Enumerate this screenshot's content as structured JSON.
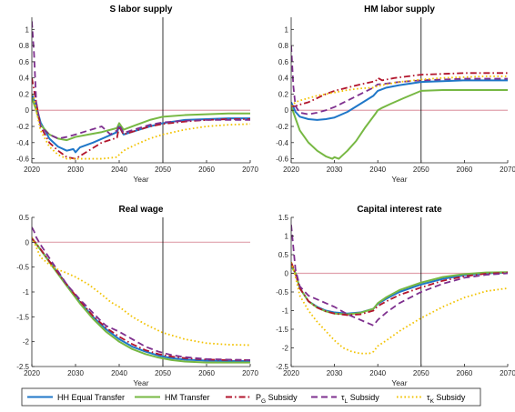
{
  "figure": {
    "legend": [
      {
        "label": "HH Equal Transfer",
        "color": "#1f77c8",
        "dash": "solid"
      },
      {
        "label": "HM Transfer",
        "color": "#77b843",
        "dash": "solid"
      },
      {
        "label_main": "P",
        "label_sub": "G",
        "label_rest": " Subsidy",
        "color": "#b2152c",
        "dash": "dashdot"
      },
      {
        "label_main": "τ",
        "label_sub": "L",
        "label_rest": " Subsidy",
        "color": "#7e2f8e",
        "dash": "dash"
      },
      {
        "label_main": "τ",
        "label_sub": "K",
        "label_rest": " Subsidy",
        "color": "#f2c200",
        "dash": "dot"
      }
    ],
    "colors": {
      "zero_line": "#e0a0ac",
      "vline": "#000000",
      "axis": "#262626"
    }
  },
  "chart_data": [
    {
      "type": "line",
      "title": "S labor supply",
      "xlabel": "Year",
      "ylabel": "",
      "xlim": [
        2020,
        2070
      ],
      "ylim": [
        -0.65,
        1.15
      ],
      "xticks": [
        2020,
        2030,
        2040,
        2050,
        2060,
        2070
      ],
      "yticks": [
        -0.6,
        -0.4,
        -0.2,
        0,
        0.2,
        0.4,
        0.6,
        0.8,
        1
      ],
      "ytick_labels": [
        "-0.6",
        "-0.4",
        "-0.2",
        "0",
        "0.2",
        "0.4",
        "0.6",
        "0.8",
        "1"
      ],
      "zero_line": 0,
      "vline": 2050,
      "series": [
        {
          "name": "HH Equal Transfer",
          "x": [
            2020,
            2021,
            2022,
            2024,
            2026,
            2028,
            2029.5,
            2030,
            2031,
            2034,
            2037,
            2039.5,
            2040,
            2041,
            2044,
            2047,
            2050,
            2055,
            2060,
            2065,
            2070
          ],
          "y": [
            0.2,
            0.05,
            -0.15,
            -0.35,
            -0.45,
            -0.5,
            -0.48,
            -0.52,
            -0.46,
            -0.4,
            -0.33,
            -0.27,
            -0.2,
            -0.3,
            -0.25,
            -0.2,
            -0.16,
            -0.12,
            -0.11,
            -0.1,
            -0.1
          ]
        },
        {
          "name": "HM Transfer",
          "x": [
            2020,
            2021,
            2022,
            2024,
            2026,
            2028,
            2030,
            2033,
            2036,
            2039.5,
            2040,
            2041,
            2044,
            2047,
            2050,
            2055,
            2060,
            2065,
            2070
          ],
          "y": [
            0.15,
            0.0,
            -0.18,
            -0.3,
            -0.35,
            -0.37,
            -0.33,
            -0.3,
            -0.27,
            -0.22,
            -0.16,
            -0.24,
            -0.18,
            -0.12,
            -0.08,
            -0.06,
            -0.05,
            -0.04,
            -0.04
          ]
        },
        {
          "name": "P_G Subsidy",
          "x": [
            2020,
            2021,
            2022,
            2024,
            2026,
            2028,
            2030,
            2033,
            2036,
            2039.5,
            2040,
            2041,
            2044,
            2047,
            2050,
            2055,
            2060,
            2065,
            2070
          ],
          "y": [
            0.4,
            0.1,
            -0.2,
            -0.4,
            -0.5,
            -0.58,
            -0.6,
            -0.5,
            -0.4,
            -0.34,
            -0.2,
            -0.3,
            -0.25,
            -0.2,
            -0.17,
            -0.14,
            -0.12,
            -0.11,
            -0.11
          ]
        },
        {
          "name": "τ_L Subsidy",
          "x": [
            2020,
            2020.5,
            2021,
            2022,
            2024,
            2026,
            2028,
            2030,
            2033,
            2036,
            2038,
            2039.5,
            2040,
            2041,
            2044,
            2047,
            2050,
            2055,
            2060,
            2065,
            2070
          ],
          "y": [
            1.1,
            0.7,
            0.1,
            -0.2,
            -0.3,
            -0.35,
            -0.33,
            -0.3,
            -0.25,
            -0.2,
            -0.3,
            -0.25,
            -0.18,
            -0.28,
            -0.23,
            -0.18,
            -0.15,
            -0.13,
            -0.12,
            -0.12,
            -0.12
          ]
        },
        {
          "name": "τ_K Subsidy",
          "x": [
            2020,
            2020.5,
            2021,
            2022,
            2024,
            2026,
            2028,
            2030,
            2033,
            2036,
            2039.5,
            2040,
            2041,
            2044,
            2047,
            2050,
            2055,
            2060,
            2065,
            2070
          ],
          "y": [
            0.2,
            0.15,
            0.0,
            -0.25,
            -0.45,
            -0.55,
            -0.6,
            -0.6,
            -0.6,
            -0.6,
            -0.58,
            -0.55,
            -0.5,
            -0.42,
            -0.35,
            -0.3,
            -0.24,
            -0.2,
            -0.18,
            -0.17
          ]
        }
      ]
    },
    {
      "type": "line",
      "title": "HM labor supply",
      "xlabel": "Year",
      "ylabel": "",
      "xlim": [
        2020,
        2070
      ],
      "ylim": [
        -0.65,
        1.15
      ],
      "xticks": [
        2020,
        2030,
        2040,
        2050,
        2060,
        2070
      ],
      "yticks": [
        -0.6,
        -0.4,
        -0.2,
        0,
        0.2,
        0.4,
        0.6,
        0.8,
        1
      ],
      "ytick_labels": [
        "-0.6",
        "-0.4",
        "-0.2",
        "0",
        "0.2",
        "0.4",
        "0.6",
        "0.8",
        "1"
      ],
      "zero_line": 0,
      "vline": 2050,
      "series": [
        {
          "name": "HH Equal Transfer",
          "x": [
            2020,
            2021,
            2022,
            2024,
            2026,
            2028,
            2030,
            2033,
            2036,
            2039,
            2040,
            2042,
            2045,
            2050,
            2055,
            2060,
            2065,
            2070
          ],
          "y": [
            0.1,
            -0.02,
            -0.08,
            -0.11,
            -0.12,
            -0.11,
            -0.09,
            -0.02,
            0.08,
            0.18,
            0.24,
            0.28,
            0.31,
            0.35,
            0.36,
            0.37,
            0.37,
            0.37
          ]
        },
        {
          "name": "HM Transfer",
          "x": [
            2020,
            2021,
            2022,
            2024,
            2026,
            2028,
            2029.5,
            2030,
            2031,
            2033,
            2035,
            2037,
            2039.5,
            2040,
            2041,
            2043,
            2046,
            2050,
            2055,
            2060,
            2065,
            2070
          ],
          "y": [
            0.05,
            -0.1,
            -0.25,
            -0.4,
            -0.5,
            -0.57,
            -0.6,
            -0.58,
            -0.6,
            -0.5,
            -0.38,
            -0.22,
            -0.04,
            0.0,
            0.03,
            0.08,
            0.15,
            0.24,
            0.25,
            0.25,
            0.25,
            0.25
          ]
        },
        {
          "name": "P_G Subsidy",
          "x": [
            2020,
            2021,
            2022,
            2024,
            2026,
            2028,
            2030,
            2033,
            2036,
            2039.5,
            2040,
            2041,
            2044,
            2047,
            2050,
            2055,
            2060,
            2065,
            2070
          ],
          "y": [
            0.05,
            0.05,
            0.07,
            0.1,
            0.15,
            0.2,
            0.24,
            0.28,
            0.32,
            0.36,
            0.4,
            0.37,
            0.4,
            0.42,
            0.44,
            0.45,
            0.46,
            0.46,
            0.46
          ]
        },
        {
          "name": "τ_L Subsidy",
          "x": [
            2020,
            2020.5,
            2021,
            2022,
            2024,
            2026,
            2028,
            2030,
            2033,
            2036,
            2039,
            2040,
            2042,
            2045,
            2050,
            2055,
            2060,
            2065,
            2070
          ],
          "y": [
            0.8,
            0.3,
            0.05,
            -0.03,
            -0.05,
            -0.03,
            0.0,
            0.04,
            0.12,
            0.2,
            0.28,
            0.32,
            0.33,
            0.35,
            0.37,
            0.38,
            0.39,
            0.39,
            0.39
          ]
        },
        {
          "name": "τ_K Subsidy",
          "x": [
            2020,
            2021,
            2022,
            2024,
            2026,
            2028,
            2030,
            2033,
            2036,
            2039,
            2040,
            2042,
            2045,
            2050,
            2055,
            2060,
            2065,
            2070
          ],
          "y": [
            0.05,
            0.1,
            0.12,
            0.15,
            0.18,
            0.2,
            0.22,
            0.25,
            0.27,
            0.28,
            0.3,
            0.32,
            0.35,
            0.38,
            0.4,
            0.41,
            0.42,
            0.42
          ]
        }
      ]
    },
    {
      "type": "line",
      "title": "Real wage",
      "xlabel": "Year",
      "ylabel": "",
      "xlim": [
        2020,
        2070
      ],
      "ylim": [
        -2.5,
        0.5
      ],
      "xticks": [
        2020,
        2030,
        2040,
        2050,
        2060,
        2070
      ],
      "yticks": [
        -2.5,
        -2,
        -1.5,
        -1,
        -0.5,
        0,
        0.5
      ],
      "ytick_labels": [
        "-2.5",
        "-2",
        "-1.5",
        "-1",
        "-0.5",
        "0",
        "0.5"
      ],
      "zero_line": 0,
      "vline": 2050,
      "series": [
        {
          "name": "HH Equal Transfer",
          "x": [
            2020,
            2022,
            2025,
            2028,
            2031,
            2034,
            2037,
            2040,
            2043,
            2046,
            2049,
            2052,
            2055,
            2060,
            2065,
            2070
          ],
          "y": [
            0.08,
            -0.15,
            -0.5,
            -0.85,
            -1.2,
            -1.5,
            -1.75,
            -1.95,
            -2.1,
            -2.2,
            -2.28,
            -2.33,
            -2.36,
            -2.38,
            -2.39,
            -2.39
          ]
        },
        {
          "name": "HM Transfer",
          "x": [
            2020,
            2022,
            2025,
            2028,
            2031,
            2034,
            2037,
            2040,
            2043,
            2046,
            2049,
            2052,
            2055,
            2060,
            2065,
            2070
          ],
          "y": [
            0.08,
            -0.15,
            -0.52,
            -0.88,
            -1.23,
            -1.54,
            -1.8,
            -2.0,
            -2.15,
            -2.25,
            -2.32,
            -2.37,
            -2.4,
            -2.42,
            -2.42,
            -2.42
          ]
        },
        {
          "name": "P_G Subsidy",
          "x": [
            2020,
            2022,
            2025,
            2028,
            2031,
            2034,
            2037,
            2040,
            2043,
            2046,
            2049,
            2052,
            2055,
            2060,
            2065,
            2070
          ],
          "y": [
            0.08,
            -0.14,
            -0.5,
            -0.85,
            -1.18,
            -1.48,
            -1.72,
            -1.9,
            -2.05,
            -2.17,
            -2.25,
            -2.3,
            -2.33,
            -2.36,
            -2.37,
            -2.37
          ]
        },
        {
          "name": "τ_L Subsidy",
          "x": [
            2020,
            2020.5,
            2021,
            2022,
            2025,
            2028,
            2031,
            2034,
            2036,
            2037,
            2040,
            2043,
            2046,
            2049,
            2052,
            2055,
            2060,
            2065,
            2070
          ],
          "y": [
            0.3,
            0.22,
            0.1,
            -0.05,
            -0.45,
            -0.85,
            -1.15,
            -1.42,
            -1.6,
            -1.68,
            -1.8,
            -1.95,
            -2.1,
            -2.2,
            -2.27,
            -2.31,
            -2.35,
            -2.36,
            -2.37
          ]
        },
        {
          "name": "τ_K Subsidy",
          "x": [
            2020,
            2021,
            2022,
            2024,
            2026,
            2028,
            2030,
            2033,
            2036,
            2038,
            2040,
            2043,
            2046,
            2050,
            2055,
            2060,
            2065,
            2070
          ],
          "y": [
            0.1,
            -0.1,
            -0.3,
            -0.45,
            -0.55,
            -0.62,
            -0.7,
            -0.85,
            -1.05,
            -1.2,
            -1.3,
            -1.5,
            -1.65,
            -1.82,
            -1.95,
            -2.03,
            -2.06,
            -2.07
          ]
        }
      ]
    },
    {
      "type": "line",
      "title": "Capital interest rate",
      "xlabel": "Year",
      "ylabel": "",
      "xlim": [
        2020,
        2070
      ],
      "ylim": [
        -2.5,
        1.5
      ],
      "xticks": [
        2020,
        2030,
        2040,
        2050,
        2060,
        2070
      ],
      "yticks": [
        -2.5,
        -2,
        -1.5,
        -1,
        -0.5,
        0,
        0.5,
        1,
        1.5
      ],
      "ytick_labels": [
        "-2.5",
        "-2",
        "-1.5",
        "-1",
        "-0.5",
        "0",
        "0.5",
        "1",
        "1.5"
      ],
      "zero_line": 0,
      "vline": 2050,
      "series": [
        {
          "name": "HH Equal Transfer",
          "x": [
            2020,
            2021,
            2022,
            2024,
            2026,
            2028,
            2030,
            2033,
            2036,
            2039,
            2040,
            2042,
            2045,
            2050,
            2055,
            2060,
            2065,
            2070
          ],
          "y": [
            0.2,
            0.0,
            -0.4,
            -0.75,
            -0.9,
            -1.0,
            -1.05,
            -1.08,
            -1.05,
            -0.95,
            -0.82,
            -0.68,
            -0.5,
            -0.3,
            -0.15,
            -0.05,
            0.0,
            0.02
          ]
        },
        {
          "name": "HM Transfer",
          "x": [
            2020,
            2021,
            2022,
            2024,
            2026,
            2028,
            2030,
            2033,
            2036,
            2039,
            2040,
            2042,
            2045,
            2050,
            2055,
            2060,
            2065,
            2070
          ],
          "y": [
            0.2,
            0.0,
            -0.4,
            -0.75,
            -0.92,
            -1.02,
            -1.08,
            -1.1,
            -1.06,
            -0.95,
            -0.8,
            -0.64,
            -0.45,
            -0.25,
            -0.1,
            -0.02,
            0.02,
            0.03
          ]
        },
        {
          "name": "P_G Subsidy",
          "x": [
            2020,
            2021,
            2022,
            2024,
            2026,
            2028,
            2030,
            2033,
            2036,
            2039,
            2040,
            2042,
            2045,
            2050,
            2055,
            2060,
            2065,
            2070
          ],
          "y": [
            0.3,
            0.0,
            -0.4,
            -0.75,
            -0.92,
            -1.02,
            -1.08,
            -1.12,
            -1.1,
            -1.0,
            -0.88,
            -0.75,
            -0.58,
            -0.38,
            -0.2,
            -0.08,
            -0.01,
            0.02
          ]
        },
        {
          "name": "τ_L Subsidy",
          "x": [
            2020,
            2020.5,
            2021,
            2022,
            2024,
            2026,
            2028,
            2030,
            2033,
            2035,
            2037,
            2039,
            2040,
            2042,
            2045,
            2050,
            2055,
            2060,
            2065,
            2070
          ],
          "y": [
            1.3,
            0.7,
            0.1,
            -0.35,
            -0.6,
            -0.7,
            -0.8,
            -0.9,
            -1.1,
            -1.2,
            -1.3,
            -1.4,
            -1.25,
            -1.05,
            -0.8,
            -0.5,
            -0.28,
            -0.12,
            -0.04,
            0.0
          ]
        },
        {
          "name": "τ_K Subsidy",
          "x": [
            2020,
            2021,
            2022,
            2024,
            2026,
            2028,
            2030,
            2032,
            2034,
            2036,
            2038,
            2039,
            2040,
            2042,
            2045,
            2050,
            2055,
            2060,
            2065,
            2070
          ],
          "y": [
            0.3,
            -0.1,
            -0.6,
            -1.0,
            -1.3,
            -1.55,
            -1.8,
            -2.0,
            -2.1,
            -2.15,
            -2.15,
            -2.1,
            -1.95,
            -1.8,
            -1.55,
            -1.2,
            -0.9,
            -0.65,
            -0.48,
            -0.4
          ]
        }
      ]
    }
  ]
}
